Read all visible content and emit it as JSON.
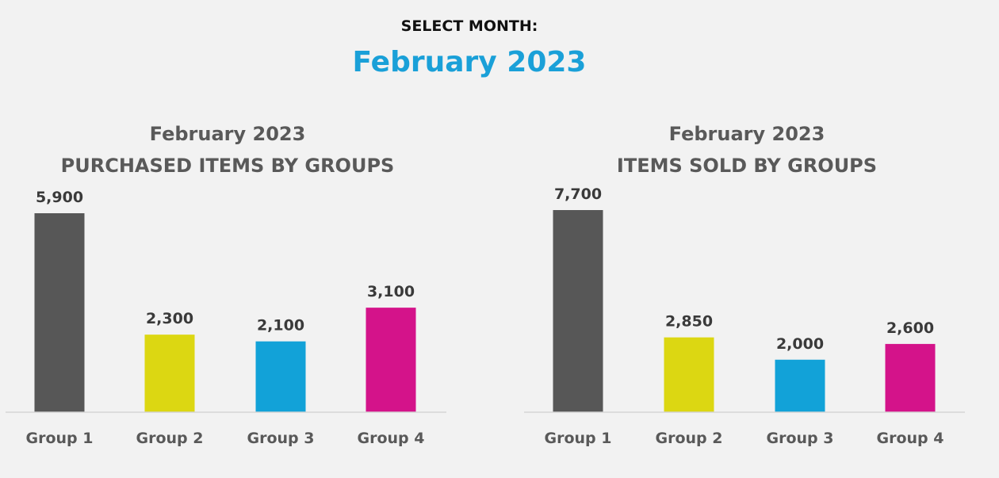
{
  "header": {
    "select_label": "SELECT MONTH:",
    "month": "February 2023"
  },
  "colors": {
    "accent": "#1aa0d8",
    "group1": "#575757",
    "group2": "#dcd712",
    "group3": "#12a2d8",
    "group4": "#d4138a"
  },
  "chart_data": [
    {
      "type": "bar",
      "title": "February 2023",
      "subtitle": "PURCHASED ITEMS BY GROUPS",
      "categories": [
        "Group 1",
        "Group 2",
        "Group 3",
        "Group 4"
      ],
      "values": [
        5900,
        2300,
        2100,
        3100
      ],
      "value_labels": [
        "5,900",
        "2,300",
        "2,100",
        "3,100"
      ],
      "ylim": [
        0,
        5900
      ],
      "grid": false,
      "legend": "none"
    },
    {
      "type": "bar",
      "title": "February 2023",
      "subtitle": "ITEMS SOLD BY GROUPS",
      "categories": [
        "Group 1",
        "Group 2",
        "Group 3",
        "Group 4"
      ],
      "values": [
        7700,
        2850,
        2000,
        2600
      ],
      "value_labels": [
        "7,700",
        "2,850",
        "2,000",
        "2,600"
      ],
      "ylim": [
        0,
        7700
      ],
      "grid": false,
      "legend": "none"
    }
  ]
}
